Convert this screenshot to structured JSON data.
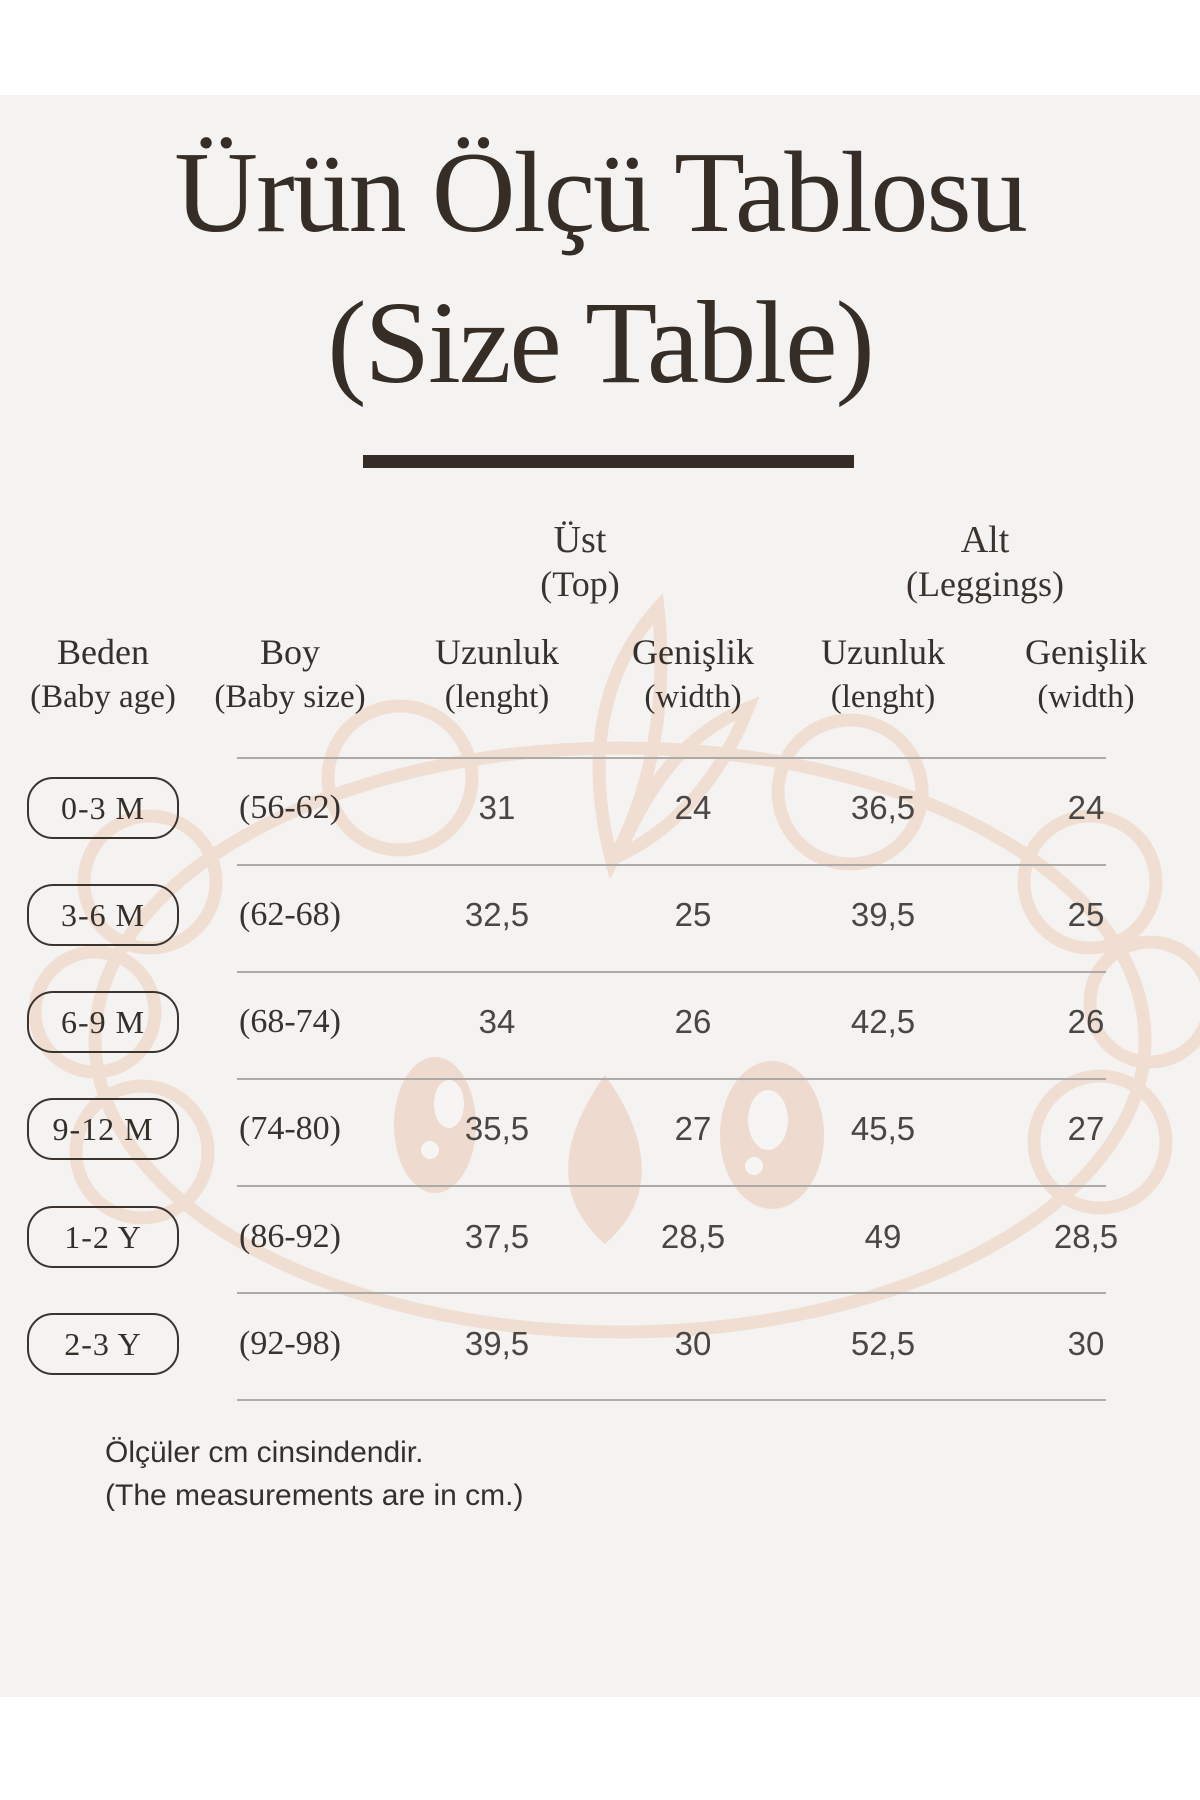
{
  "title": {
    "line1": "Ürün Ölçü Tablosu",
    "line2": "(Size Table)"
  },
  "groups": [
    {
      "line1": "Üst",
      "line2": "(Top)"
    },
    {
      "line1": "Alt",
      "line2": "(Leggings)"
    }
  ],
  "columns": [
    {
      "line1": "Beden",
      "line2": "(Baby age)"
    },
    {
      "line1": "Boy",
      "line2": "(Baby size)"
    },
    {
      "line1": "Uzunluk",
      "line2": "(lenght)"
    },
    {
      "line1": "Genişlik",
      "line2": "(width)"
    },
    {
      "line1": "Uzunluk",
      "line2": "(lenght)"
    },
    {
      "line1": "Genişlik",
      "line2": "(width)"
    }
  ],
  "rows": [
    {
      "age": "0-3 M",
      "size": "(56-62)",
      "top_length": "31",
      "top_width": "24",
      "leg_length": "36,5",
      "leg_width": "24"
    },
    {
      "age": "3-6 M",
      "size": "(62-68)",
      "top_length": "32,5",
      "top_width": "25",
      "leg_length": "39,5",
      "leg_width": "25"
    },
    {
      "age": "6-9 M",
      "size": "(68-74)",
      "top_length": "34",
      "top_width": "26",
      "leg_length": "42,5",
      "leg_width": "26"
    },
    {
      "age": "9-12 M",
      "size": "(74-80)",
      "top_length": "35,5",
      "top_width": "27",
      "leg_length": "45,5",
      "leg_width": "27"
    },
    {
      "age": "1-2 Y",
      "size": "(86-92)",
      "top_length": "37,5",
      "top_width": "28,5",
      "leg_length": "49",
      "leg_width": "28,5"
    },
    {
      "age": "2-3 Y",
      "size": "(92-98)",
      "top_length": "39,5",
      "top_width": "30",
      "leg_length": "52,5",
      "leg_width": "30"
    }
  ],
  "footnote": {
    "line1": "Ölçüler cm cinsindendir.",
    "line2": "(The measurements are in cm.)"
  },
  "colors": {
    "band": "#ffffff",
    "sheet_background": "#f5f3f1",
    "ink": "#362d26",
    "number_text": "#4a4644",
    "separator": "#adaaa7",
    "watermark_stroke": "#f1ded3",
    "watermark_fill": "#eedacf"
  }
}
